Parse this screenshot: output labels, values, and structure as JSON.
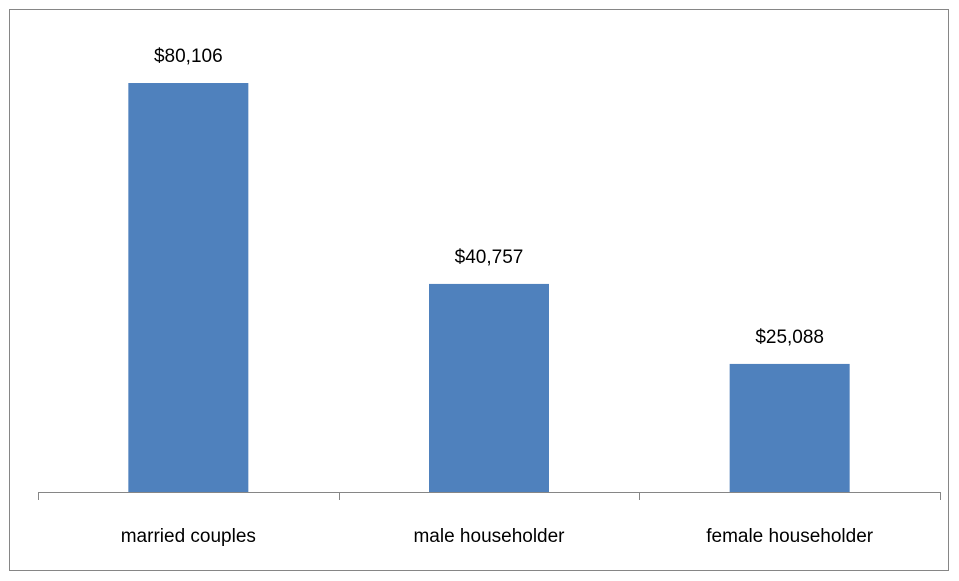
{
  "chart_data": {
    "type": "bar",
    "categories": [
      "married couples",
      "male householder",
      "female householder"
    ],
    "values": [
      80106,
      40757,
      25088
    ],
    "value_labels": [
      "$80,106",
      "$40,757",
      "$25,088"
    ],
    "color": "#4f81bd",
    "ylim": [
      0,
      90000
    ]
  }
}
